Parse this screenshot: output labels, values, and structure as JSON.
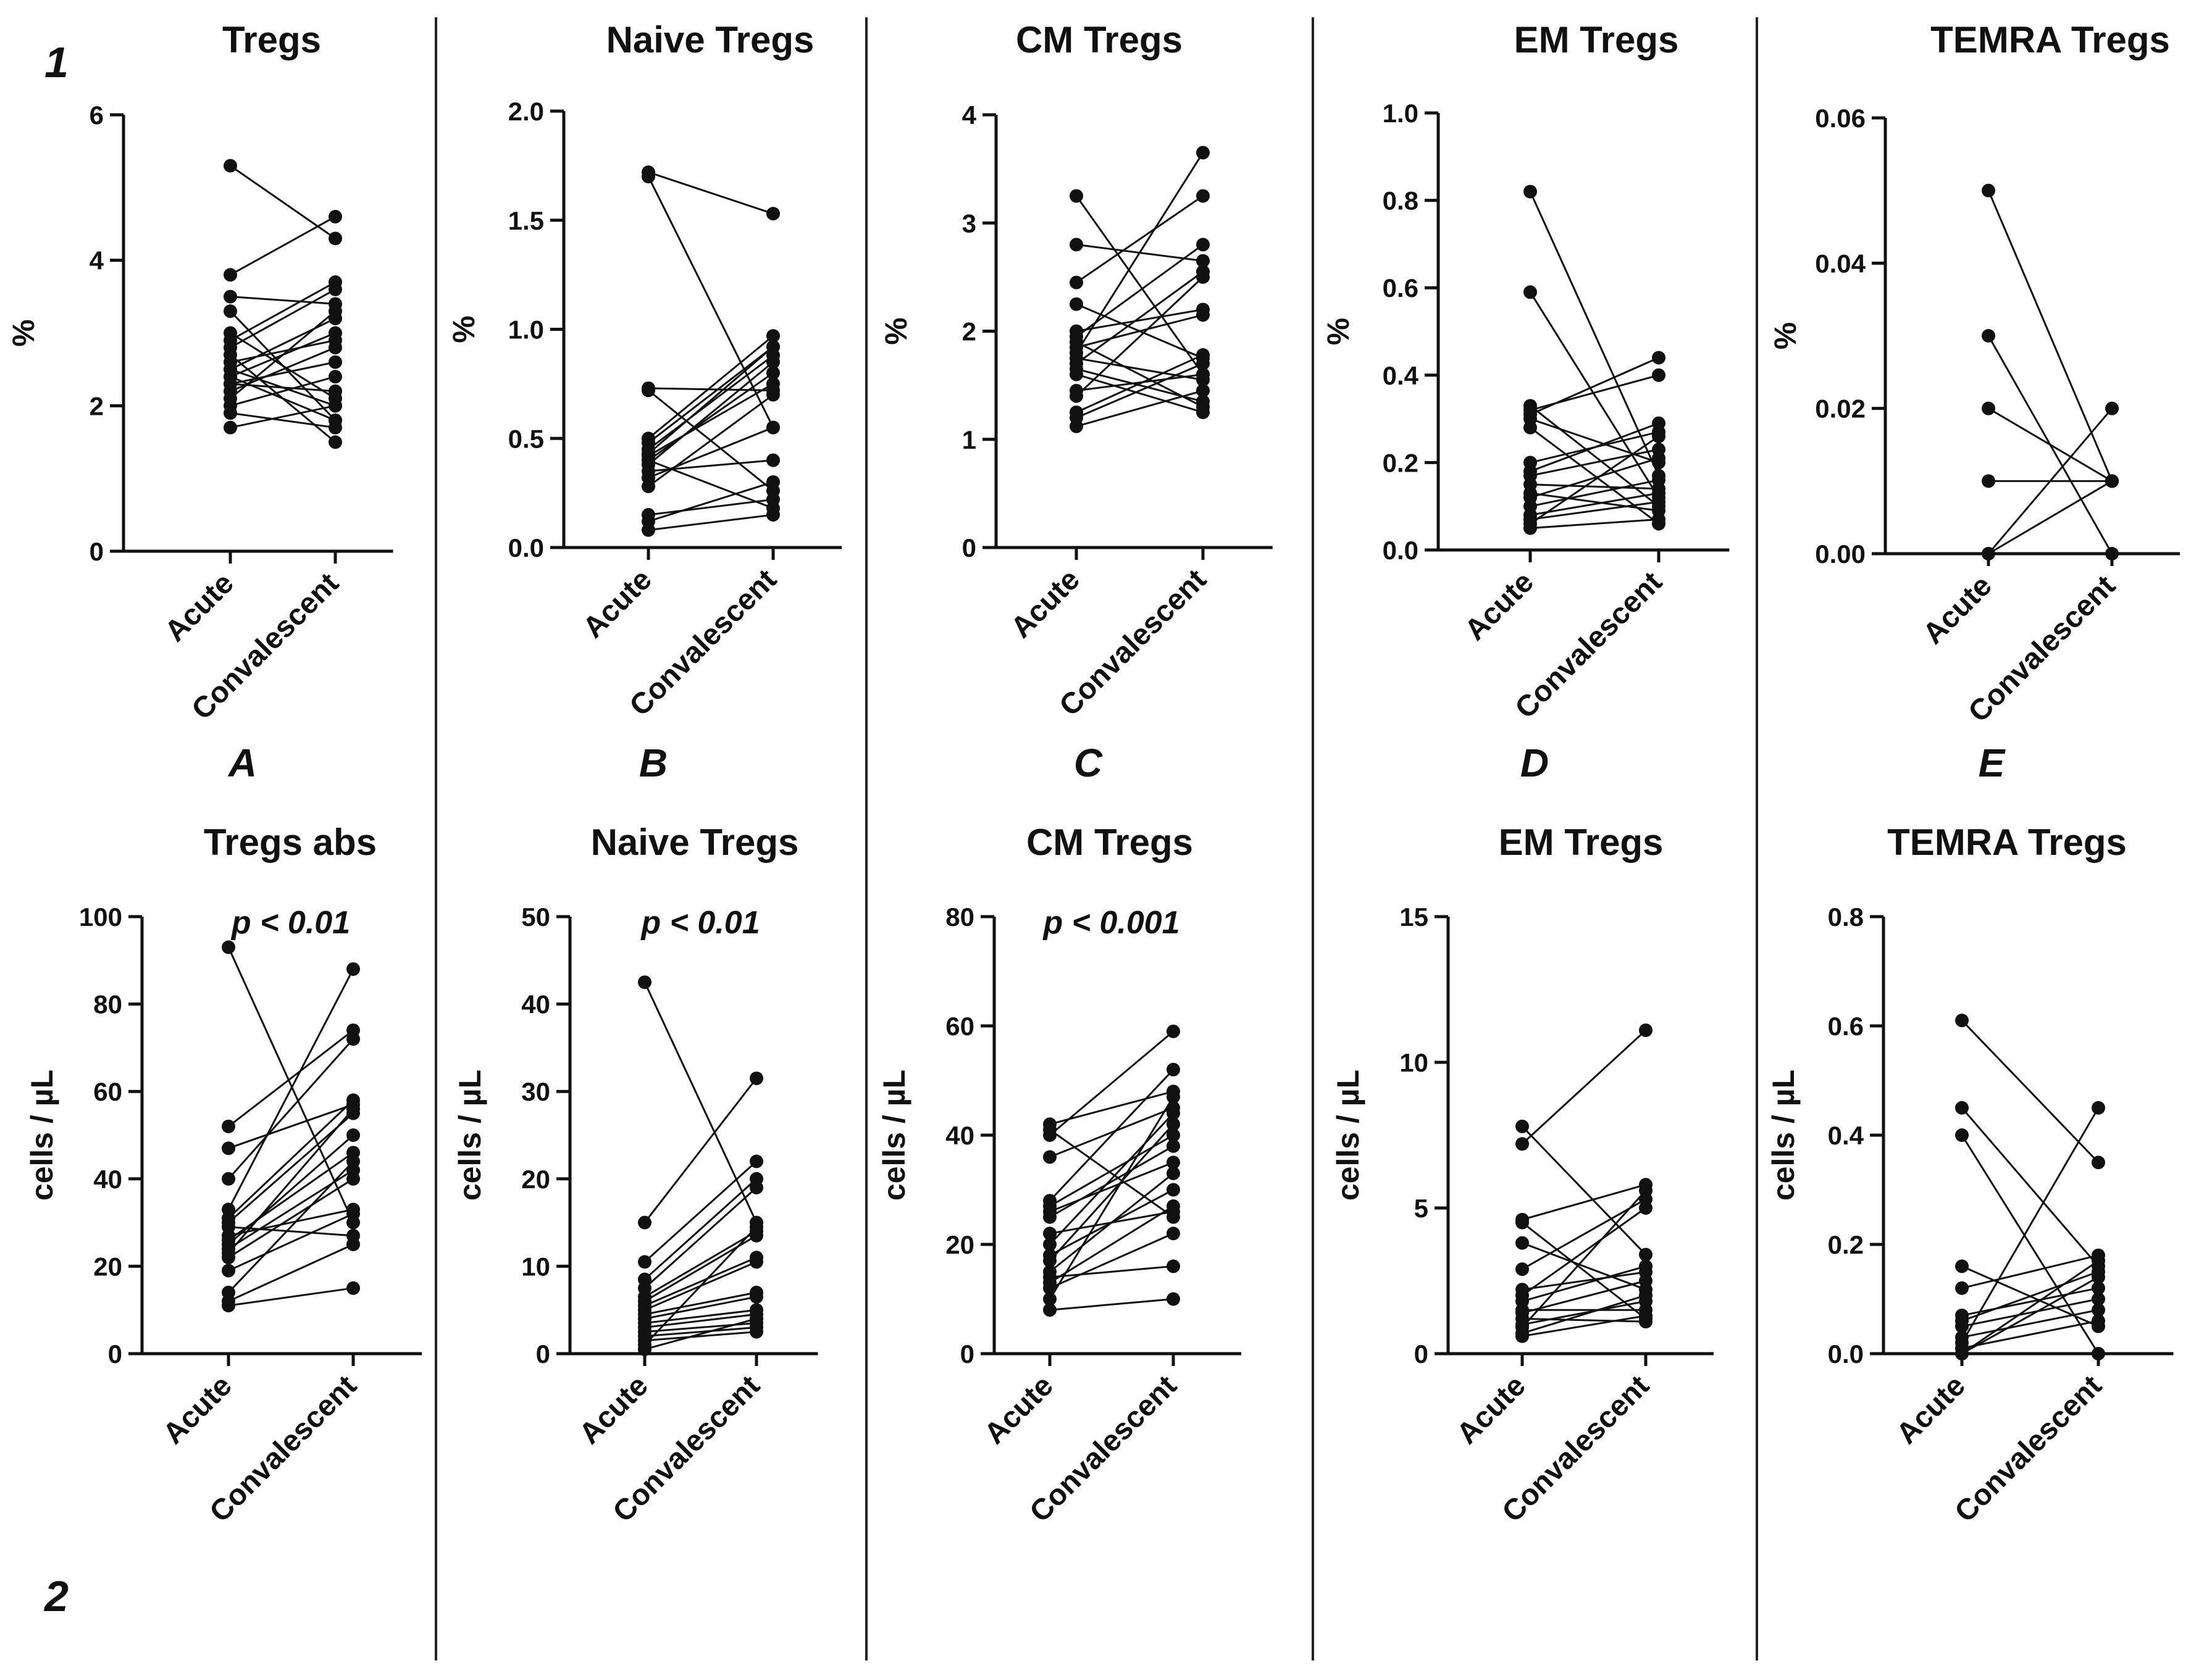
{
  "figure": {
    "row_labels": [
      "1",
      "2"
    ],
    "panel_letters": [
      "A",
      "B",
      "C",
      "D",
      "E"
    ]
  },
  "chart_data": [
    {
      "type": "line",
      "title": "Tregs",
      "ylabel": "%",
      "categories": [
        "Acute",
        "Convalescent"
      ],
      "ylim": [
        0,
        6
      ],
      "yticks": [
        "0",
        "2",
        "4",
        "6"
      ],
      "pvalue": "",
      "pairs": [
        [
          5.3,
          4.3
        ],
        [
          3.8,
          4.6
        ],
        [
          3.5,
          3.4
        ],
        [
          3.3,
          1.8
        ],
        [
          3.0,
          2.1
        ],
        [
          2.9,
          3.7
        ],
        [
          2.8,
          3.6
        ],
        [
          2.7,
          1.5
        ],
        [
          2.6,
          2.9
        ],
        [
          2.5,
          2.0
        ],
        [
          2.5,
          3.2
        ],
        [
          2.4,
          1.8
        ],
        [
          2.4,
          3.0
        ],
        [
          2.3,
          2.6
        ],
        [
          2.3,
          2.2
        ],
        [
          2.2,
          2.8
        ],
        [
          2.1,
          3.3
        ],
        [
          2.0,
          2.4
        ],
        [
          1.9,
          1.7
        ],
        [
          1.7,
          2.0
        ]
      ]
    },
    {
      "type": "line",
      "title": "Naive Tregs",
      "ylabel": "%",
      "categories": [
        "Acute",
        "Convalescent"
      ],
      "ylim": [
        0,
        2
      ],
      "yticks": [
        "0.0",
        "0.5",
        "1.0",
        "1.5",
        "2.0"
      ],
      "pvalue": "",
      "pairs": [
        [
          1.72,
          1.53
        ],
        [
          1.7,
          0.55
        ],
        [
          0.73,
          0.72
        ],
        [
          0.72,
          0.26
        ],
        [
          0.5,
          0.97
        ],
        [
          0.48,
          0.92
        ],
        [
          0.45,
          0.88
        ],
        [
          0.42,
          0.75
        ],
        [
          0.4,
          0.8
        ],
        [
          0.38,
          0.85
        ],
        [
          0.35,
          0.4
        ],
        [
          0.32,
          0.55
        ],
        [
          0.28,
          0.7
        ],
        [
          0.15,
          0.22
        ],
        [
          0.12,
          0.3
        ],
        [
          0.08,
          0.15
        ],
        [
          0.4,
          0.18
        ],
        [
          0.43,
          0.92
        ]
      ]
    },
    {
      "type": "line",
      "title": "CM Tregs",
      "ylabel": "%",
      "categories": [
        "Acute",
        "Convalescent"
      ],
      "ylim": [
        0,
        4
      ],
      "yticks": [
        "0",
        "1",
        "2",
        "3",
        "4"
      ],
      "pvalue": "",
      "pairs": [
        [
          3.25,
          1.6
        ],
        [
          2.8,
          2.65
        ],
        [
          2.45,
          3.25
        ],
        [
          2.25,
          1.75
        ],
        [
          2.0,
          2.2
        ],
        [
          1.95,
          2.8
        ],
        [
          1.9,
          1.3
        ],
        [
          1.85,
          2.15
        ],
        [
          1.8,
          3.65
        ],
        [
          1.75,
          1.55
        ],
        [
          1.7,
          2.55
        ],
        [
          1.65,
          1.35
        ],
        [
          1.6,
          1.25
        ],
        [
          1.45,
          1.6
        ],
        [
          1.4,
          2.5
        ],
        [
          1.25,
          1.78
        ],
        [
          1.2,
          1.7
        ],
        [
          1.12,
          1.45
        ]
      ]
    },
    {
      "type": "line",
      "title": "EM Tregs",
      "ylabel": "%",
      "categories": [
        "Acute",
        "Convalescent"
      ],
      "ylim": [
        0,
        1
      ],
      "yticks": [
        "0.0",
        "0.2",
        "0.4",
        "0.6",
        "0.8",
        "1.0"
      ],
      "pvalue": "",
      "pairs": [
        [
          0.82,
          0.17
        ],
        [
          0.59,
          0.12
        ],
        [
          0.33,
          0.1
        ],
        [
          0.32,
          0.4
        ],
        [
          0.31,
          0.44
        ],
        [
          0.3,
          0.2
        ],
        [
          0.28,
          0.06
        ],
        [
          0.2,
          0.27
        ],
        [
          0.18,
          0.29
        ],
        [
          0.17,
          0.23
        ],
        [
          0.15,
          0.14
        ],
        [
          0.13,
          0.09
        ],
        [
          0.12,
          0.21
        ],
        [
          0.1,
          0.16
        ],
        [
          0.08,
          0.13
        ],
        [
          0.07,
          0.11
        ],
        [
          0.06,
          0.26
        ],
        [
          0.05,
          0.07
        ]
      ]
    },
    {
      "type": "line",
      "title": "TEMRA Tregs",
      "ylabel": "%",
      "categories": [
        "Acute",
        "Convalescent"
      ],
      "ylim": [
        0,
        0.06
      ],
      "yticks": [
        "0.00",
        "0.02",
        "0.04",
        "0.06"
      ],
      "pvalue": "",
      "pairs": [
        [
          0.05,
          0.01
        ],
        [
          0.03,
          0.0
        ],
        [
          0.02,
          0.01
        ],
        [
          0.01,
          0.01
        ],
        [
          0.0,
          0.02
        ],
        [
          0.0,
          0.01
        ]
      ]
    },
    {
      "type": "line",
      "title": "Tregs abs",
      "ylabel": "cells / µL",
      "categories": [
        "Acute",
        "Convalescent"
      ],
      "ylim": [
        0,
        100
      ],
      "yticks": [
        "0",
        "20",
        "40",
        "60",
        "80",
        "100"
      ],
      "pvalue": "p < 0.01",
      "pairs": [
        [
          93,
          30
        ],
        [
          52,
          74
        ],
        [
          47,
          57
        ],
        [
          40,
          72
        ],
        [
          33,
          88
        ],
        [
          31,
          58
        ],
        [
          30,
          55
        ],
        [
          29,
          27
        ],
        [
          27,
          33
        ],
        [
          26,
          46
        ],
        [
          25,
          50
        ],
        [
          24,
          42
        ],
        [
          23,
          56
        ],
        [
          22,
          40
        ],
        [
          19,
          32
        ],
        [
          14,
          44
        ],
        [
          11,
          15
        ],
        [
          12,
          25
        ]
      ]
    },
    {
      "type": "line",
      "title": "Naive Tregs",
      "ylabel": "cells / µL",
      "categories": [
        "Acute",
        "Convalescent"
      ],
      "ylim": [
        0,
        50
      ],
      "yticks": [
        "0",
        "10",
        "20",
        "30",
        "40",
        "50"
      ],
      "pvalue": "p < 0.01",
      "pairs": [
        [
          42.5,
          15
        ],
        [
          15,
          31.5
        ],
        [
          10.5,
          22
        ],
        [
          8.5,
          20
        ],
        [
          7.5,
          19
        ],
        [
          6.5,
          14
        ],
        [
          6,
          13.5
        ],
        [
          5.5,
          11
        ],
        [
          5,
          10.5
        ],
        [
          4.5,
          7
        ],
        [
          4,
          6.5
        ],
        [
          3.5,
          5
        ],
        [
          3,
          4.5
        ],
        [
          2.5,
          3.5
        ],
        [
          2,
          3
        ],
        [
          1.5,
          2.5
        ],
        [
          1,
          14.5
        ],
        [
          0.5,
          4
        ]
      ]
    },
    {
      "type": "line",
      "title": "CM Tregs",
      "ylabel": "cells / µL",
      "categories": [
        "Acute",
        "Convalescent"
      ],
      "ylim": [
        0,
        80
      ],
      "yticks": [
        "0",
        "20",
        "40",
        "60",
        "80"
      ],
      "pvalue": "p < 0.001",
      "pairs": [
        [
          42,
          48
        ],
        [
          41,
          25
        ],
        [
          40,
          59
        ],
        [
          36,
          45
        ],
        [
          28,
          52
        ],
        [
          27,
          40
        ],
        [
          26,
          35
        ],
        [
          25,
          38
        ],
        [
          20,
          44
        ],
        [
          18,
          30
        ],
        [
          17,
          42
        ],
        [
          15,
          33
        ],
        [
          13,
          27
        ],
        [
          12,
          22
        ],
        [
          10,
          47
        ],
        [
          8,
          10
        ],
        [
          14,
          16
        ],
        [
          22,
          26
        ]
      ]
    },
    {
      "type": "line",
      "title": "EM Tregs",
      "ylabel": "cells / µL",
      "categories": [
        "Acute",
        "Convalescent"
      ],
      "ylim": [
        0,
        15
      ],
      "yticks": [
        "0",
        "5",
        "10",
        "15"
      ],
      "pvalue": "",
      "pairs": [
        [
          7.8,
          3.4
        ],
        [
          7.2,
          11.1
        ],
        [
          4.6,
          5.8
        ],
        [
          4.5,
          1.2
        ],
        [
          3.8,
          2.2
        ],
        [
          2.9,
          5.3
        ],
        [
          2.2,
          2.8
        ],
        [
          2.0,
          5.0
        ],
        [
          1.8,
          3.0
        ],
        [
          1.5,
          1.5
        ],
        [
          1.4,
          2.5
        ],
        [
          1.2,
          1.1
        ],
        [
          1.0,
          1.8
        ],
        [
          0.9,
          5.6
        ],
        [
          0.7,
          2.0
        ],
        [
          0.6,
          1.3
        ]
      ]
    },
    {
      "type": "line",
      "title": "TEMRA Tregs",
      "ylabel": "cells / µL",
      "categories": [
        "Acute",
        "Convalescent"
      ],
      "ylim": [
        0,
        0.8
      ],
      "yticks": [
        "0.0",
        "0.2",
        "0.4",
        "0.6",
        "0.8"
      ],
      "pvalue": "",
      "pairs": [
        [
          0.61,
          0.35
        ],
        [
          0.45,
          0.16
        ],
        [
          0.4,
          0.0
        ],
        [
          0.16,
          0.05
        ],
        [
          0.12,
          0.18
        ],
        [
          0.07,
          0.12
        ],
        [
          0.06,
          0.15
        ],
        [
          0.05,
          0.1
        ],
        [
          0.03,
          0.08
        ],
        [
          0.02,
          0.45
        ],
        [
          0.01,
          0.06
        ],
        [
          0.0,
          0.14
        ],
        [
          0.0,
          0.17
        ]
      ]
    }
  ]
}
